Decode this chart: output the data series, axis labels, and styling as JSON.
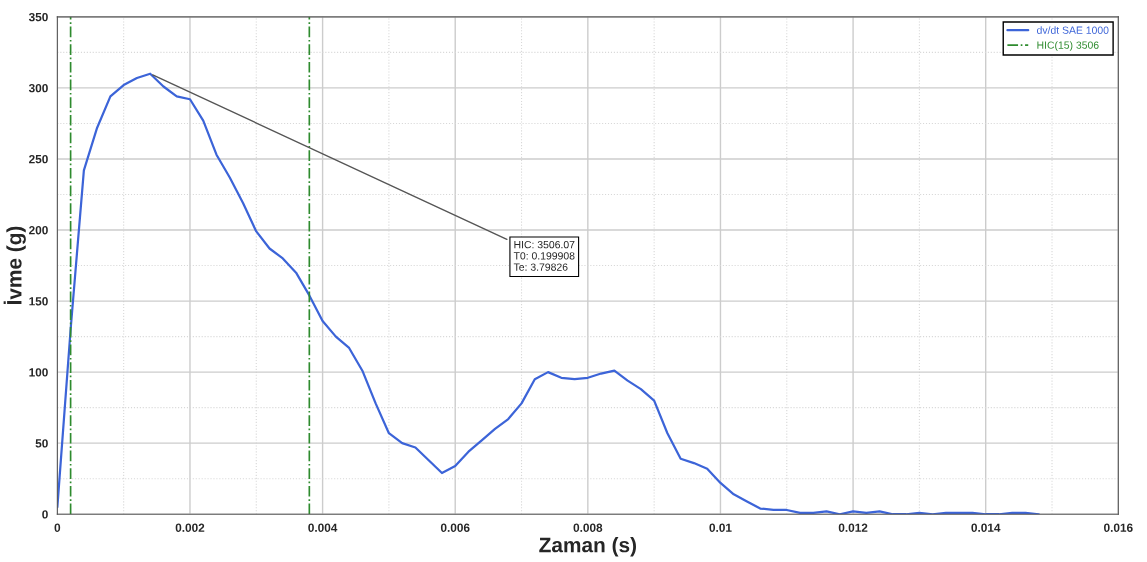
{
  "chart_data": {
    "type": "line",
    "xlabel": "Zaman (s)",
    "ylabel": "İvme (g)",
    "x": [
      0,
      0.0002,
      0.0004,
      0.0006,
      0.0008,
      0.001,
      0.0012,
      0.0014,
      0.0016,
      0.0018,
      0.002,
      0.0022,
      0.0024,
      0.0026,
      0.0028,
      0.003,
      0.0032,
      0.0034,
      0.0036,
      0.0038,
      0.004,
      0.0042,
      0.0044,
      0.0046,
      0.0048,
      0.005,
      0.0052,
      0.0054,
      0.0056,
      0.0058,
      0.006,
      0.0062,
      0.0064,
      0.0066,
      0.0068,
      0.007,
      0.0072,
      0.0074,
      0.0076,
      0.0078,
      0.008,
      0.0082,
      0.0084,
      0.0086,
      0.0088,
      0.009,
      0.0092,
      0.0094,
      0.0096,
      0.0098,
      0.01,
      0.0102,
      0.0104,
      0.0106,
      0.0108,
      0.011,
      0.0112,
      0.0114,
      0.0116,
      0.0118,
      0.012,
      0.0122,
      0.0124,
      0.0126,
      0.0128,
      0.013,
      0.0132,
      0.0134,
      0.0136,
      0.0138,
      0.014,
      0.0142,
      0.0144,
      0.0146,
      0.0148
    ],
    "series": [
      {
        "name": "dv/dt SAE 1000",
        "color": "#3c64d8",
        "values": [
          5,
          130,
          242,
          272,
          294,
          302,
          307,
          310,
          301,
          294,
          292,
          277,
          253,
          237,
          219,
          199,
          187,
          180,
          170,
          154,
          136,
          125,
          117,
          101,
          78,
          57,
          50,
          47,
          38,
          29,
          34,
          44,
          52,
          60,
          67,
          78,
          95,
          100,
          96,
          95,
          96,
          99,
          101,
          94,
          88,
          80,
          57,
          39,
          36,
          32,
          22,
          14,
          9,
          4,
          3,
          3,
          1,
          1,
          2,
          0,
          2,
          1,
          2,
          0,
          0,
          1,
          0,
          1,
          1,
          1,
          0,
          0,
          1,
          1,
          0
        ]
      }
    ],
    "ref_lines": [
      {
        "axis": "x",
        "value": 0.0002,
        "label": "HIC(15) 3506",
        "color": "#2e8b2e",
        "line_style": "dashdot"
      },
      {
        "axis": "x",
        "value": 0.0038,
        "label": null,
        "color": "#2e8b2e",
        "line_style": "dashdot"
      }
    ],
    "annotations": [
      {
        "text": "HIC: 3506.07\nT0: 0.199908\nTe: 3.79826",
        "x": 0.0014,
        "y": 310
      }
    ],
    "xlim": [
      0,
      0.016
    ],
    "xticks": [
      0,
      0.002,
      0.004,
      0.006,
      0.008,
      0.01,
      0.012,
      0.014,
      0.016
    ],
    "ylim": [
      0,
      350
    ],
    "yticks": [
      0,
      50,
      100,
      150,
      200,
      250,
      300,
      350
    ],
    "grid": true,
    "legend": "top right",
    "line_style": "solid",
    "marker": "none"
  }
}
